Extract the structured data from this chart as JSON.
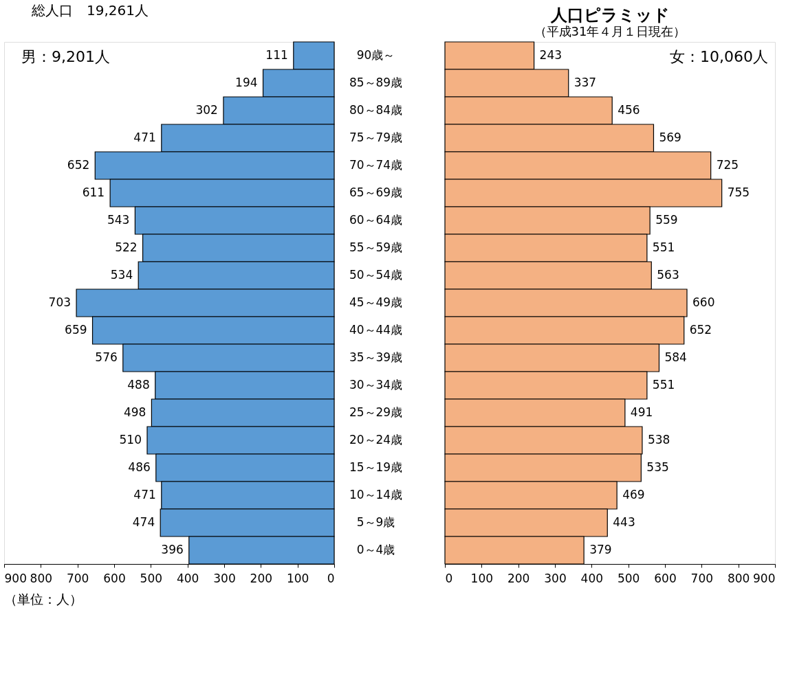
{
  "chart_data": [
    {
      "type": "bar",
      "orientation": "horizontal",
      "categories": [
        "90歳～",
        "85～89歳",
        "80～84歳",
        "75～79歳",
        "70～74歳",
        "65～69歳",
        "60～64歳",
        "55～59歳",
        "50～54歳",
        "45～49歳",
        "40～44歳",
        "35～39歳",
        "30～34歳",
        "25～29歳",
        "20～24歳",
        "15～19歳",
        "10～14歳",
        "5～9歳",
        "0～4歳"
      ],
      "values": [
        111,
        194,
        302,
        471,
        652,
        611,
        543,
        522,
        534,
        703,
        659,
        576,
        488,
        498,
        510,
        486,
        471,
        474,
        396
      ],
      "color": "#5b9bd5",
      "data_labels": true,
      "xlim": [
        900,
        0
      ],
      "xticks": [
        900,
        800,
        700,
        600,
        500,
        400,
        300,
        200,
        100,
        0
      ],
      "annotations": [
        "総人口　19,261人",
        "男：9,201人",
        "（単位：人）"
      ]
    },
    {
      "type": "bar",
      "orientation": "horizontal",
      "title": "人口ピラミッド",
      "subtitle": "（平成31年４月１日現在）",
      "categories": [
        null,
        null,
        null,
        null,
        null,
        null,
        null,
        null,
        null,
        null,
        null,
        null,
        null,
        null,
        null,
        null,
        null,
        null,
        null
      ],
      "values": [
        243,
        337,
        456,
        569,
        725,
        755,
        559,
        551,
        563,
        660,
        652,
        584,
        551,
        491,
        538,
        535,
        469,
        443,
        379
      ],
      "color": "#f4b183",
      "data_labels": true,
      "xlim": [
        0,
        900
      ],
      "xticks": [
        0,
        100,
        200,
        300,
        400,
        500,
        600,
        700,
        800,
        900
      ],
      "annotations": [
        "女：10,060人"
      ]
    }
  ]
}
